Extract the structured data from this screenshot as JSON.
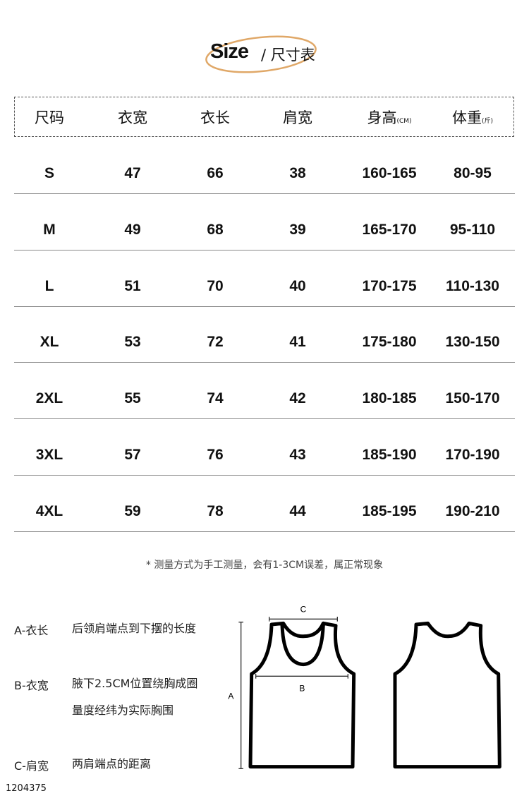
{
  "title": {
    "en": "Size",
    "cn": "/ 尺寸表",
    "accent": "#e0a868"
  },
  "header": [
    {
      "label": "尺码",
      "unit": ""
    },
    {
      "label": "衣宽",
      "unit": ""
    },
    {
      "label": "衣长",
      "unit": ""
    },
    {
      "label": "肩宽",
      "unit": ""
    },
    {
      "label": "身高",
      "unit": "(CM)"
    },
    {
      "label": "体重",
      "unit": "(斤)"
    }
  ],
  "rows": [
    [
      "S",
      "47",
      "66",
      "38",
      "160-165",
      "80-95"
    ],
    [
      "M",
      "49",
      "68",
      "39",
      "165-170",
      "95-110"
    ],
    [
      "L",
      "51",
      "70",
      "40",
      "170-175",
      "110-130"
    ],
    [
      "XL",
      "53",
      "72",
      "41",
      "175-180",
      "130-150"
    ],
    [
      "2XL",
      "55",
      "74",
      "42",
      "180-185",
      "150-170"
    ],
    [
      "3XL",
      "57",
      "76",
      "43",
      "185-190",
      "170-190"
    ],
    [
      "4XL",
      "59",
      "78",
      "44",
      "185-195",
      "190-210"
    ]
  ],
  "note": "* 测量方式为手工测量，会有1-3CM误差，属正常现象",
  "legend": [
    {
      "key": "A-衣长",
      "desc": "后领肩端点到下摆的长度"
    },
    {
      "key": "B-衣宽",
      "desc": "腋下2.5CM位置绕胸成圈量度经纬为实际胸围"
    },
    {
      "key": "C-肩宽",
      "desc": "两肩端点的距离"
    }
  ],
  "diagram": {
    "a": "A",
    "b": "B",
    "c": "C"
  },
  "product_id": "1204375"
}
